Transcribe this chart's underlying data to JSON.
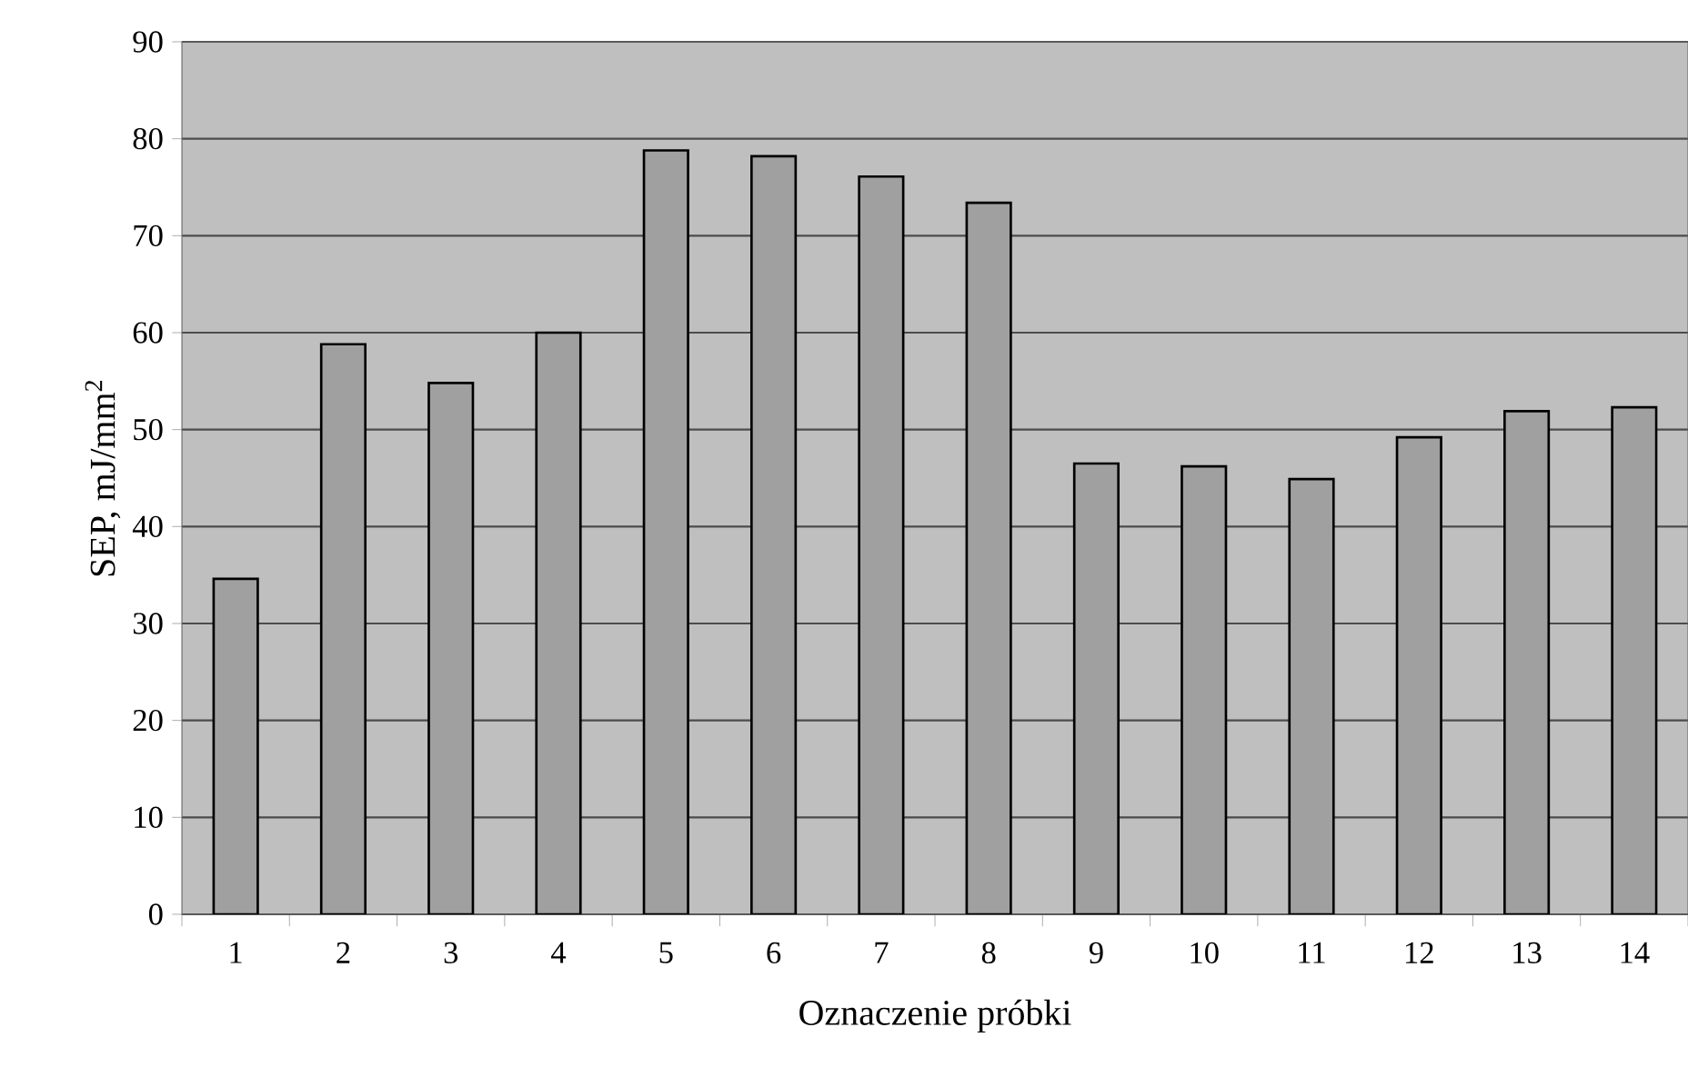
{
  "chart_data": {
    "type": "bar",
    "categories": [
      "1",
      "2",
      "3",
      "4",
      "5",
      "6",
      "7",
      "8",
      "9",
      "10",
      "11",
      "12",
      "13",
      "14"
    ],
    "values": [
      34.6,
      58.8,
      54.8,
      60.0,
      78.8,
      78.2,
      76.1,
      73.4,
      46.5,
      46.2,
      44.9,
      49.2,
      51.9,
      52.3
    ],
    "color": "#a0a0a0",
    "xlabel": "Oznaczenie próbki",
    "ylabel": "SEP, mJ/mm$^{2}$",
    "ylim": [
      0,
      90
    ],
    "yticks": [
      0,
      10,
      20,
      30,
      40,
      50,
      60,
      70,
      80,
      90
    ],
    "grid": "y"
  }
}
